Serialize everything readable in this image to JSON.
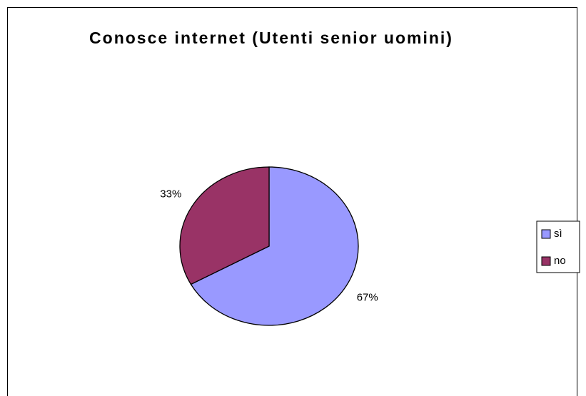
{
  "chart_data": {
    "type": "pie",
    "title": "Conosce internet (Utenti senior uomini)",
    "categories": [
      "sì",
      "no"
    ],
    "values": [
      67,
      33
    ],
    "value_labels": [
      "67%",
      "33%"
    ],
    "colors": [
      "#9999ff",
      "#993366"
    ],
    "legend": "right"
  }
}
